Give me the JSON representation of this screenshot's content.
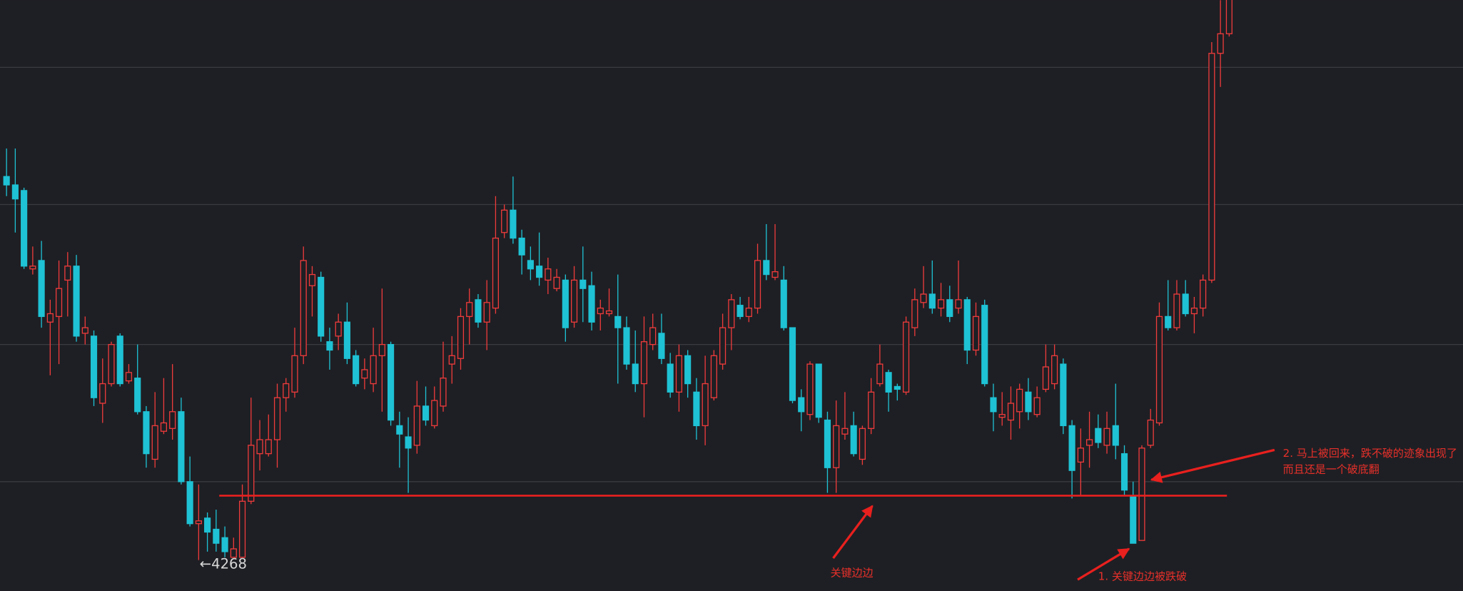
{
  "chart_data": {
    "type": "candlestick",
    "ylim": [
      4257,
      4468
    ],
    "ygrid": [
      4444,
      4395,
      4345,
      4296
    ],
    "up_color": "#ef3b3b",
    "down_color": "#1ec2d4",
    "ohlc": [
      [
        4405,
        4415,
        4398,
        4402
      ],
      [
        4402,
        4415,
        4385,
        4397
      ],
      [
        4400,
        4401,
        4372,
        4373
      ],
      [
        4372,
        4380,
        4370,
        4373
      ],
      [
        4375,
        4382,
        4351,
        4355
      ],
      [
        4353,
        4361,
        4334,
        4356
      ],
      [
        4355,
        4375,
        4338,
        4365
      ],
      [
        4368,
        4378,
        4355,
        4373
      ],
      [
        4373,
        4377,
        4346,
        4348
      ],
      [
        4349,
        4355,
        4345,
        4351
      ],
      [
        4348,
        4350,
        4323,
        4326
      ],
      [
        4324,
        4340,
        4317,
        4331
      ],
      [
        4331,
        4346,
        4330,
        4345
      ],
      [
        4348,
        4349,
        4330,
        4331
      ],
      [
        4332,
        4338,
        4331,
        4335
      ],
      [
        4333,
        4345,
        4320,
        4321
      ],
      [
        4321,
        4323,
        4301,
        4306
      ],
      [
        4304,
        4328,
        4301,
        4316
      ],
      [
        4314,
        4333,
        4313,
        4317
      ],
      [
        4315,
        4338,
        4311,
        4321
      ],
      [
        4321,
        4326,
        4295,
        4296
      ],
      [
        4296,
        4305,
        4280,
        4281
      ],
      [
        4281,
        4295,
        4268,
        4282
      ],
      [
        4283,
        4285,
        4271,
        4278
      ],
      [
        4279,
        4286,
        4271,
        4274
      ],
      [
        4276,
        4280,
        4269,
        4271
      ],
      [
        4269,
        4276,
        4269,
        4272
      ],
      [
        4269,
        4295,
        4269,
        4289
      ],
      [
        4289,
        4326,
        4288,
        4309
      ],
      [
        4306,
        4318,
        4300,
        4311
      ],
      [
        4306,
        4320,
        4305,
        4311
      ],
      [
        4311,
        4331,
        4301,
        4326
      ],
      [
        4326,
        4333,
        4321,
        4331
      ],
      [
        4328,
        4351,
        4326,
        4341
      ],
      [
        4341,
        4380,
        4338,
        4375
      ],
      [
        4366,
        4373,
        4355,
        4370
      ],
      [
        4369,
        4371,
        4346,
        4348
      ],
      [
        4346,
        4351,
        4336,
        4343
      ],
      [
        4348,
        4356,
        4343,
        4353
      ],
      [
        4353,
        4360,
        4338,
        4340
      ],
      [
        4341,
        4343,
        4330,
        4331
      ],
      [
        4333,
        4340,
        4329,
        4336
      ],
      [
        4331,
        4351,
        4328,
        4341
      ],
      [
        4341,
        4365,
        4321,
        4345
      ],
      [
        4345,
        4346,
        4316,
        4318
      ],
      [
        4316,
        4321,
        4301,
        4313
      ],
      [
        4312,
        4319,
        4292,
        4308
      ],
      [
        4309,
        4332,
        4306,
        4323
      ],
      [
        4323,
        4330,
        4316,
        4318
      ],
      [
        4316,
        4330,
        4315,
        4325
      ],
      [
        4323,
        4346,
        4321,
        4333
      ],
      [
        4338,
        4348,
        4331,
        4341
      ],
      [
        4340,
        4358,
        4336,
        4355
      ],
      [
        4355,
        4365,
        4345,
        4360
      ],
      [
        4361,
        4363,
        4351,
        4353
      ],
      [
        4353,
        4368,
        4343,
        4360
      ],
      [
        4358,
        4398,
        4356,
        4383
      ],
      [
        4385,
        4395,
        4383,
        4393
      ],
      [
        4393,
        4405,
        4381,
        4383
      ],
      [
        4383,
        4386,
        4370,
        4377
      ],
      [
        4375,
        4380,
        4368,
        4372
      ],
      [
        4373,
        4385,
        4366,
        4369
      ],
      [
        4368,
        4376,
        4363,
        4372
      ],
      [
        4365,
        4372,
        4364,
        4369
      ],
      [
        4368,
        4370,
        4346,
        4351
      ],
      [
        4353,
        4373,
        4351,
        4368
      ],
      [
        4368,
        4380,
        4353,
        4365
      ],
      [
        4366,
        4371,
        4350,
        4353
      ],
      [
        4356,
        4361,
        4350,
        4358
      ],
      [
        4356,
        4365,
        4355,
        4357
      ],
      [
        4355,
        4370,
        4331,
        4351
      ],
      [
        4351,
        4355,
        4336,
        4338
      ],
      [
        4338,
        4350,
        4328,
        4331
      ],
      [
        4331,
        4355,
        4319,
        4346
      ],
      [
        4345,
        4356,
        4343,
        4351
      ],
      [
        4349,
        4356,
        4338,
        4340
      ],
      [
        4338,
        4342,
        4326,
        4328
      ],
      [
        4328,
        4345,
        4321,
        4341
      ],
      [
        4341,
        4343,
        4326,
        4331
      ],
      [
        4328,
        4333,
        4311,
        4316
      ],
      [
        4316,
        4341,
        4309,
        4331
      ],
      [
        4326,
        4343,
        4325,
        4341
      ],
      [
        4338,
        4356,
        4336,
        4351
      ],
      [
        4351,
        4363,
        4343,
        4361
      ],
      [
        4359,
        4362,
        4354,
        4355
      ],
      [
        4355,
        4362,
        4353,
        4358
      ],
      [
        4358,
        4381,
        4356,
        4375
      ],
      [
        4375,
        4388,
        4368,
        4370
      ],
      [
        4369,
        4388,
        4368,
        4371
      ],
      [
        4368,
        4373,
        4350,
        4351
      ],
      [
        4351,
        4351,
        4324,
        4325
      ],
      [
        4326,
        4329,
        4314,
        4321
      ],
      [
        4320,
        4339,
        4318,
        4338
      ],
      [
        4338,
        4338,
        4317,
        4319
      ],
      [
        4318,
        4321,
        4292,
        4301
      ],
      [
        4301,
        4325,
        4292,
        4316
      ],
      [
        4313,
        4328,
        4311,
        4315
      ],
      [
        4316,
        4321,
        4305,
        4306
      ],
      [
        4304,
        4316,
        4302,
        4315
      ],
      [
        4315,
        4333,
        4313,
        4328
      ],
      [
        4331,
        4345,
        4330,
        4338
      ],
      [
        4335,
        4336,
        4321,
        4328
      ],
      [
        4330,
        4331,
        4325,
        4329
      ],
      [
        4328,
        4355,
        4327,
        4353
      ],
      [
        4351,
        4365,
        4348,
        4361
      ],
      [
        4360,
        4373,
        4358,
        4363
      ],
      [
        4363,
        4375,
        4356,
        4358
      ],
      [
        4358,
        4367,
        4355,
        4361
      ],
      [
        4361,
        4366,
        4353,
        4355
      ],
      [
        4358,
        4375,
        4356,
        4361
      ],
      [
        4361,
        4362,
        4338,
        4343
      ],
      [
        4343,
        4360,
        4341,
        4355
      ],
      [
        4359,
        4361,
        4330,
        4331
      ],
      [
        4326,
        4331,
        4314,
        4321
      ],
      [
        4319,
        4328,
        4316,
        4320
      ],
      [
        4318,
        4330,
        4311,
        4324
      ],
      [
        4321,
        4331,
        4315,
        4329
      ],
      [
        4328,
        4333,
        4318,
        4321
      ],
      [
        4320,
        4330,
        4319,
        4326
      ],
      [
        4329,
        4345,
        4328,
        4337
      ],
      [
        4331,
        4345,
        4329,
        4341
      ],
      [
        4338,
        4340,
        4313,
        4316
      ],
      [
        4316,
        4318,
        4290,
        4300
      ],
      [
        4303,
        4315,
        4291,
        4308
      ],
      [
        4309,
        4321,
        4301,
        4311
      ],
      [
        4315,
        4320,
        4308,
        4310
      ],
      [
        4309,
        4321,
        4306,
        4315
      ],
      [
        4316,
        4331,
        4304,
        4309
      ],
      [
        4306,
        4309,
        4291,
        4293
      ],
      [
        4291,
        4296,
        4274,
        4274
      ],
      [
        4275,
        4309,
        4275,
        4308
      ],
      [
        4309,
        4322,
        4308,
        4318
      ],
      [
        4317,
        4360,
        4316,
        4355
      ],
      [
        4355,
        4368,
        4350,
        4351
      ],
      [
        4351,
        4368,
        4350,
        4363
      ],
      [
        4363,
        4368,
        4355,
        4356
      ],
      [
        4356,
        4362,
        4349,
        4358
      ],
      [
        4358,
        4370,
        4355,
        4368
      ],
      [
        4368,
        4453,
        4367,
        4449
      ],
      [
        4449,
        4468,
        4437,
        4456
      ],
      [
        4456,
        4475,
        4455,
        4470
      ]
    ],
    "low_label": {
      "value": 4268,
      "label": "←4268"
    },
    "key_level": {
      "value": 4291,
      "color": "#e8201e"
    },
    "annotations": [
      "关键边边",
      "1. 关键边边被跌破",
      "2. 马上被回来，跌不破的迹象出现了",
      "而且还是一个破底翻"
    ]
  }
}
